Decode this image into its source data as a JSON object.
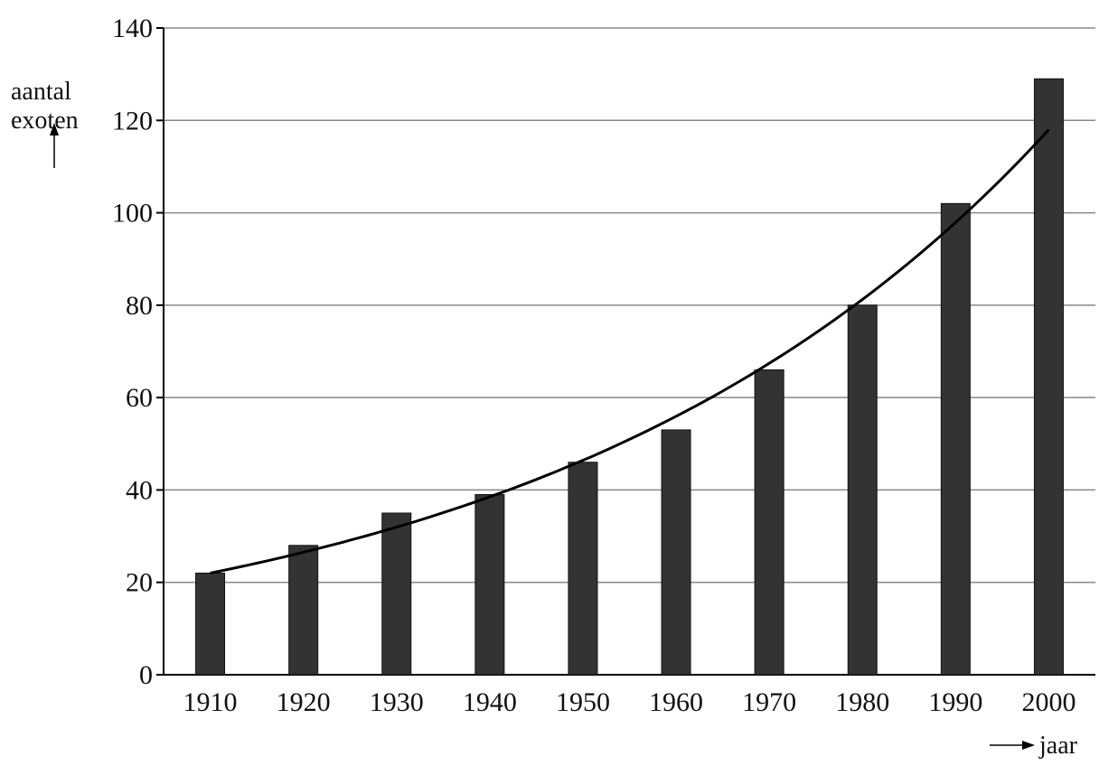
{
  "chart_data": {
    "type": "bar",
    "title": "",
    "xlabel": "jaar",
    "ylabel": "aantal exoten",
    "categories": [
      "1910",
      "1920",
      "1930",
      "1940",
      "1950",
      "1960",
      "1970",
      "1980",
      "1990",
      "2000"
    ],
    "values": [
      22,
      28,
      35,
      39,
      46,
      53,
      66,
      80,
      102,
      129
    ],
    "trendline": {
      "type": "exponential",
      "x": [
        1910,
        2000
      ],
      "y": [
        22,
        118
      ]
    },
    "ylim": [
      0,
      140
    ],
    "yticks": [
      0,
      20,
      40,
      60,
      80,
      100,
      120,
      140
    ],
    "grid": true,
    "colors": {
      "bar": "#333333",
      "trend": "#000000",
      "grid": "#888888"
    }
  }
}
